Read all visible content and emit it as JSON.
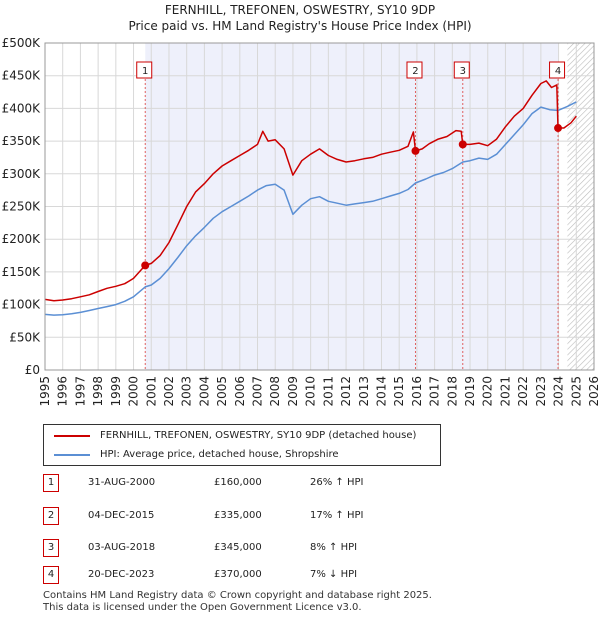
{
  "chart_data": {
    "type": "line",
    "title": "FERNHILL, TREFONEN, OSWESTRY, SY10 9DP",
    "subtitle": "Price paid vs. HM Land Registry's House Price Index (HPI)",
    "x_range": [
      1995,
      2026
    ],
    "y_range": [
      0,
      500000
    ],
    "y_ticks": [
      {
        "value": 0,
        "label": "£0"
      },
      {
        "value": 50000,
        "label": "£50K"
      },
      {
        "value": 100000,
        "label": "£100K"
      },
      {
        "value": 150000,
        "label": "£150K"
      },
      {
        "value": 200000,
        "label": "£200K"
      },
      {
        "value": 250000,
        "label": "£250K"
      },
      {
        "value": 300000,
        "label": "£300K"
      },
      {
        "value": 350000,
        "label": "£350K"
      },
      {
        "value": 400000,
        "label": "£400K"
      },
      {
        "value": 450000,
        "label": "£450K"
      },
      {
        "value": 500000,
        "label": "£500K"
      }
    ],
    "x_ticks": [
      "1995",
      "1996",
      "1997",
      "1998",
      "1999",
      "2000",
      "2001",
      "2002",
      "2003",
      "2004",
      "2005",
      "2006",
      "2007",
      "2008",
      "2009",
      "2010",
      "2011",
      "2012",
      "2013",
      "2014",
      "2015",
      "2016",
      "2017",
      "2018",
      "2019",
      "2020",
      "2021",
      "2022",
      "2023",
      "2024",
      "2025",
      "2026"
    ],
    "shaded_period": [
      2000.66,
      2023.97
    ],
    "hatched_from": 2024.5,
    "series": [
      {
        "name": "FERNHILL, TREFONEN, OSWESTRY, SY10 9DP (detached house)",
        "color": "#cc0000",
        "points": [
          [
            1995.0,
            108000
          ],
          [
            1995.5,
            106000
          ],
          [
            1996.0,
            107000
          ],
          [
            1996.5,
            109000
          ],
          [
            1997.0,
            112000
          ],
          [
            1997.5,
            115000
          ],
          [
            1998.0,
            120000
          ],
          [
            1998.5,
            125000
          ],
          [
            1999.0,
            128000
          ],
          [
            1999.5,
            132000
          ],
          [
            2000.0,
            140000
          ],
          [
            2000.66,
            160000
          ],
          [
            2001.0,
            163000
          ],
          [
            2001.5,
            175000
          ],
          [
            2002.0,
            195000
          ],
          [
            2002.5,
            222000
          ],
          [
            2003.0,
            250000
          ],
          [
            2003.5,
            272000
          ],
          [
            2004.0,
            285000
          ],
          [
            2004.5,
            300000
          ],
          [
            2005.0,
            312000
          ],
          [
            2005.5,
            320000
          ],
          [
            2006.0,
            328000
          ],
          [
            2006.5,
            336000
          ],
          [
            2007.0,
            345000
          ],
          [
            2007.3,
            365000
          ],
          [
            2007.6,
            350000
          ],
          [
            2008.0,
            352000
          ],
          [
            2008.5,
            338000
          ],
          [
            2009.0,
            298000
          ],
          [
            2009.5,
            320000
          ],
          [
            2010.0,
            330000
          ],
          [
            2010.5,
            338000
          ],
          [
            2011.0,
            328000
          ],
          [
            2011.5,
            322000
          ],
          [
            2012.0,
            318000
          ],
          [
            2012.5,
            320000
          ],
          [
            2013.0,
            323000
          ],
          [
            2013.5,
            325000
          ],
          [
            2014.0,
            330000
          ],
          [
            2014.5,
            333000
          ],
          [
            2015.0,
            336000
          ],
          [
            2015.5,
            342000
          ],
          [
            2015.8,
            364000
          ],
          [
            2015.92,
            335000
          ],
          [
            2016.3,
            338000
          ],
          [
            2016.7,
            346000
          ],
          [
            2017.2,
            353000
          ],
          [
            2017.7,
            357000
          ],
          [
            2018.2,
            366000
          ],
          [
            2018.5,
            365000
          ],
          [
            2018.59,
            345000
          ],
          [
            2019.0,
            345000
          ],
          [
            2019.5,
            347000
          ],
          [
            2020.0,
            343000
          ],
          [
            2020.5,
            353000
          ],
          [
            2021.0,
            372000
          ],
          [
            2021.5,
            388000
          ],
          [
            2022.0,
            400000
          ],
          [
            2022.5,
            420000
          ],
          [
            2023.0,
            438000
          ],
          [
            2023.3,
            442000
          ],
          [
            2023.6,
            432000
          ],
          [
            2023.9,
            436000
          ],
          [
            2023.97,
            370000
          ],
          [
            2024.3,
            370000
          ],
          [
            2024.7,
            378000
          ],
          [
            2025.0,
            388000
          ]
        ]
      },
      {
        "name": "HPI: Average price, detached house, Shropshire",
        "color": "#5b8fd4",
        "points": [
          [
            1995.0,
            85000
          ],
          [
            1995.5,
            84000
          ],
          [
            1996.0,
            84500
          ],
          [
            1996.5,
            86000
          ],
          [
            1997.0,
            88000
          ],
          [
            1997.5,
            91000
          ],
          [
            1998.0,
            94000
          ],
          [
            1998.5,
            97000
          ],
          [
            1999.0,
            100000
          ],
          [
            1999.5,
            105000
          ],
          [
            2000.0,
            112000
          ],
          [
            2000.66,
            127000
          ],
          [
            2001.0,
            130000
          ],
          [
            2001.5,
            140000
          ],
          [
            2002.0,
            155000
          ],
          [
            2002.5,
            172000
          ],
          [
            2003.0,
            190000
          ],
          [
            2003.5,
            205000
          ],
          [
            2004.0,
            218000
          ],
          [
            2004.5,
            232000
          ],
          [
            2005.0,
            242000
          ],
          [
            2005.5,
            250000
          ],
          [
            2006.0,
            258000
          ],
          [
            2006.5,
            266000
          ],
          [
            2007.0,
            275000
          ],
          [
            2007.5,
            282000
          ],
          [
            2008.0,
            284000
          ],
          [
            2008.5,
            275000
          ],
          [
            2009.0,
            238000
          ],
          [
            2009.5,
            252000
          ],
          [
            2010.0,
            262000
          ],
          [
            2010.5,
            265000
          ],
          [
            2011.0,
            258000
          ],
          [
            2011.5,
            255000
          ],
          [
            2012.0,
            252000
          ],
          [
            2012.5,
            254000
          ],
          [
            2013.0,
            256000
          ],
          [
            2013.5,
            258000
          ],
          [
            2014.0,
            262000
          ],
          [
            2014.5,
            266000
          ],
          [
            2015.0,
            270000
          ],
          [
            2015.5,
            276000
          ],
          [
            2015.92,
            286000
          ],
          [
            2016.5,
            292000
          ],
          [
            2017.0,
            298000
          ],
          [
            2017.5,
            302000
          ],
          [
            2018.0,
            308000
          ],
          [
            2018.59,
            318000
          ],
          [
            2019.0,
            320000
          ],
          [
            2019.5,
            324000
          ],
          [
            2020.0,
            322000
          ],
          [
            2020.5,
            330000
          ],
          [
            2021.0,
            345000
          ],
          [
            2021.5,
            360000
          ],
          [
            2022.0,
            375000
          ],
          [
            2022.5,
            392000
          ],
          [
            2023.0,
            402000
          ],
          [
            2023.5,
            398000
          ],
          [
            2023.97,
            397000
          ],
          [
            2024.5,
            403000
          ],
          [
            2025.0,
            410000
          ]
        ]
      }
    ],
    "sales": [
      {
        "label": "1",
        "x": 2000.66,
        "price": 160000
      },
      {
        "label": "2",
        "x": 2015.92,
        "price": 335000
      },
      {
        "label": "3",
        "x": 2018.59,
        "price": 345000
      },
      {
        "label": "4",
        "x": 2023.97,
        "price": 370000
      }
    ]
  },
  "legend": {
    "items": [
      {
        "label": "FERNHILL, TREFONEN, OSWESTRY, SY10 9DP (detached house)",
        "color": "#cc0000"
      },
      {
        "label": "HPI: Average price, detached house, Shropshire",
        "color": "#5b8fd4"
      }
    ]
  },
  "transactions": [
    {
      "num": "1",
      "date": "31-AUG-2000",
      "price": "£160,000",
      "hpi": "26% ↑ HPI"
    },
    {
      "num": "2",
      "date": "04-DEC-2015",
      "price": "£335,000",
      "hpi": "17% ↑ HPI"
    },
    {
      "num": "3",
      "date": "03-AUG-2018",
      "price": "£345,000",
      "hpi": "8% ↑ HPI"
    },
    {
      "num": "4",
      "date": "20-DEC-2023",
      "price": "£370,000",
      "hpi": "7% ↓ HPI"
    }
  ],
  "footer": {
    "line1": "Contains HM Land Registry data © Crown copyright and database right 2025.",
    "line2": "This data is licensed under the Open Government Licence v3.0."
  }
}
